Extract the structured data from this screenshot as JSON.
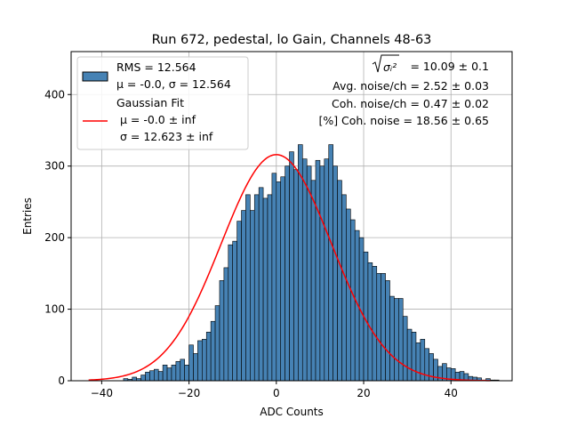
{
  "chart_data": {
    "type": "histogram",
    "title": "Run 672, pedestal, lo Gain, Channels 48-63",
    "xlabel": "ADC Counts",
    "ylabel": "Entries",
    "xlim": [
      -47,
      54
    ],
    "ylim": [
      0,
      460
    ],
    "xticks": [
      -40,
      -20,
      0,
      20,
      40
    ],
    "xtick_labels": [
      "−40",
      "−20",
      "0",
      "20",
      "40"
    ],
    "yticks": [
      0,
      100,
      200,
      300,
      400
    ],
    "ytick_labels": [
      "0",
      "100",
      "200",
      "300",
      "400"
    ],
    "grid": true,
    "bin_start": -43,
    "bin_width": 1,
    "counts": [
      0,
      0,
      0,
      0,
      0,
      0,
      0,
      0,
      3,
      2,
      5,
      3,
      8,
      12,
      14,
      16,
      13,
      22,
      18,
      22,
      27,
      30,
      22,
      50,
      38,
      56,
      58,
      68,
      83,
      105,
      140,
      158,
      190,
      195,
      223,
      238,
      260,
      238,
      260,
      270,
      255,
      260,
      290,
      278,
      285,
      300,
      320,
      295,
      330,
      310,
      300,
      280,
      308,
      300,
      310,
      330,
      300,
      280,
      260,
      240,
      225,
      210,
      200,
      180,
      165,
      160,
      150,
      150,
      140,
      118,
      115,
      115,
      90,
      72,
      68,
      53,
      58,
      45,
      38,
      30,
      20,
      24,
      18,
      17,
      12,
      13,
      10,
      6,
      5,
      4,
      1,
      3,
      1,
      1
    ],
    "bar_color": "#4682b4",
    "fit": {
      "name": "Gaussian Fit",
      "mu": 0.0,
      "sigma": 12.623,
      "amplitude": 316,
      "x_range": [
        -43,
        49
      ],
      "color": "#ff0000"
    },
    "legend": {
      "placement": "top-left",
      "entries": [
        {
          "type": "patch",
          "lines": [
            "RMS = 12.564",
            "μ = -0.0, σ = 12.564"
          ]
        },
        {
          "type": "line",
          "lines": [
            "Gaussian Fit",
            "μ = -0.0 ± inf",
            "σ = 12.623 ± inf"
          ]
        }
      ]
    },
    "annotations": [
      {
        "sqrt_label": "σᵢ²",
        "text": "= 10.09 ± 0.1"
      },
      {
        "text": "Avg. noise/ch = 2.52 ± 0.03"
      },
      {
        "text": "Coh. noise/ch = 0.47 ± 0.02"
      },
      {
        "text": "[%] Coh. noise = 18.56 ± 0.65"
      }
    ]
  }
}
